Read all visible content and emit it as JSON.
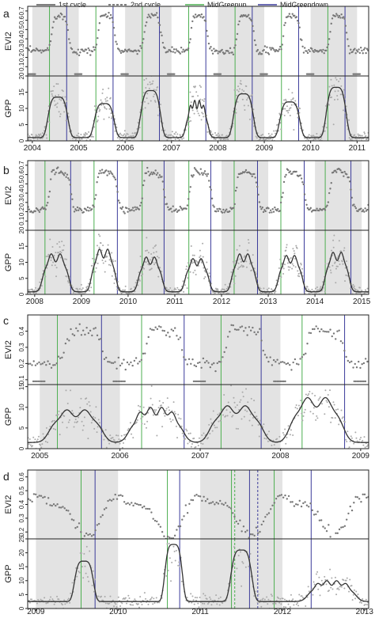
{
  "legend": {
    "items": [
      {
        "label": "1st cycle",
        "style": "solid",
        "color": "#555555"
      },
      {
        "label": "2nd cycle",
        "style": "dashed",
        "color": "#555555"
      },
      {
        "label": "MidGreenup",
        "style": "solid",
        "color": "#4caf50"
      },
      {
        "label": "MidGreendown",
        "style": "solid",
        "color": "#3a3a9a"
      }
    ]
  },
  "colors": {
    "greenup": "#4caf50",
    "greendown": "#3a3a9a",
    "shade": "#e3e3e3",
    "points": "#777777",
    "gpp_points": "#aaaaaa",
    "curve": "#333333"
  },
  "chart_data": [
    {
      "panel": "a",
      "type": "line",
      "x_range": [
        2003.9,
        2011.25
      ],
      "x_ticks": [
        2004,
        2005,
        2006,
        2007,
        2008,
        2009,
        2010,
        2011
      ],
      "x_tick_labels": [
        "2004",
        "2005",
        "2006",
        "2007",
        "2008",
        "2009",
        "2010",
        "2011"
      ],
      "shaded_years": [
        2004,
        2006,
        2008,
        2010
      ],
      "evi2": {
        "ylabel": "EVI2",
        "ylim": [
          0,
          0.75
        ],
        "ticks": [
          0.1,
          0.2,
          0.3,
          0.4,
          0.5,
          0.6,
          0.7
        ],
        "tick_labels": [
          "0.1",
          "0.2",
          "0.3",
          "0.4",
          "0.5",
          "0.6",
          "0.7"
        ],
        "base": 0.27,
        "amplitude": 0.4,
        "zero_values": 0.02,
        "start_shift": 0.1
      },
      "gpp": {
        "ylabel": "GPP",
        "ylim": [
          0,
          20
        ],
        "ticks": [
          0,
          5,
          10,
          15,
          20
        ],
        "tick_labels": [
          "0",
          "5",
          "10",
          "15",
          "20"
        ],
        "base": 1.0,
        "seasons": [
          {
            "start": 2004.3,
            "end": 2004.8,
            "peak": 12.5,
            "dips": 0
          },
          {
            "start": 2005.3,
            "end": 2005.8,
            "peak": 10.5,
            "dips": 0
          },
          {
            "start": 2006.3,
            "end": 2006.8,
            "peak": 14.5,
            "dips": 0
          },
          {
            "start": 2007.3,
            "end": 2007.8,
            "peak": 11.5,
            "dips": 2
          },
          {
            "start": 2008.3,
            "end": 2008.8,
            "peak": 13.5,
            "dips": 0
          },
          {
            "start": 2009.3,
            "end": 2009.8,
            "peak": 11.0,
            "dips": 0
          },
          {
            "start": 2010.3,
            "end": 2010.8,
            "peak": 15.5,
            "dips": 0
          }
        ]
      },
      "mid_greenup": [
        2004.37,
        2005.37,
        2006.37,
        2007.37,
        2008.37,
        2009.37,
        2010.37
      ],
      "mid_greendown": [
        2004.74,
        2005.74,
        2006.74,
        2007.74,
        2008.74,
        2009.74,
        2010.74
      ],
      "second_cycle_greenup": [],
      "second_cycle_greendown": []
    },
    {
      "panel": "b",
      "type": "line",
      "x_range": [
        2007.85,
        2015.15
      ],
      "x_ticks": [
        2008,
        2009,
        2010,
        2011,
        2012,
        2013,
        2014,
        2015
      ],
      "x_tick_labels": [
        "2008",
        "2009",
        "2010",
        "2011",
        "2012",
        "2013",
        "2014",
        "2015"
      ],
      "shaded_years": [
        2008,
        2010,
        2012,
        2014
      ],
      "evi2": {
        "ylabel": "EVI2",
        "ylim": [
          0,
          0.75
        ],
        "ticks": [
          0.1,
          0.2,
          0.3,
          0.4,
          0.5,
          0.6,
          0.7
        ],
        "tick_labels": [
          "0.1",
          "0.2",
          "0.3",
          "0.4",
          "0.5",
          "0.6",
          "0.7"
        ],
        "base": 0.22,
        "amplitude": 0.43,
        "zero_values": 0,
        "start_shift": 0.0
      },
      "gpp": {
        "ylabel": "GPP",
        "ylim": [
          0,
          20
        ],
        "ticks": [
          0,
          5,
          10,
          15,
          20
        ],
        "tick_labels": [
          "0",
          "5",
          "10",
          "15",
          "20"
        ],
        "base": 0.8,
        "seasons": [
          {
            "start": 2008.15,
            "end": 2008.75,
            "peak": 12.0,
            "dips": 1
          },
          {
            "start": 2009.2,
            "end": 2009.75,
            "peak": 13.5,
            "dips": 1
          },
          {
            "start": 2010.2,
            "end": 2010.75,
            "peak": 11.0,
            "dips": 1
          },
          {
            "start": 2011.2,
            "end": 2011.75,
            "peak": 10.5,
            "dips": 1
          },
          {
            "start": 2012.2,
            "end": 2012.75,
            "peak": 12.0,
            "dips": 1
          },
          {
            "start": 2013.2,
            "end": 2013.75,
            "peak": 11.5,
            "dips": 1
          },
          {
            "start": 2014.2,
            "end": 2014.75,
            "peak": 12.5,
            "dips": 1
          }
        ]
      },
      "mid_greenup": [
        2008.22,
        2009.27,
        2010.3,
        2011.3,
        2012.27,
        2013.27,
        2014.22
      ],
      "mid_greendown": [
        2008.77,
        2009.77,
        2010.77,
        2011.77,
        2012.77,
        2013.77,
        2014.77
      ],
      "second_cycle_greenup": [],
      "second_cycle_greendown": []
    },
    {
      "panel": "c",
      "type": "line",
      "x_range": [
        2004.85,
        2009.1
      ],
      "x_ticks": [
        2005,
        2006,
        2007,
        2008,
        2009
      ],
      "x_tick_labels": [
        "2005",
        "2006",
        "2007",
        "2008",
        "2009"
      ],
      "shaded_years": [
        2005,
        2007
      ],
      "evi2": {
        "ylabel": "EVI2",
        "ylim": [
          0.07,
          0.5
        ],
        "ticks": [
          0.1,
          0.2,
          0.3,
          0.4
        ],
        "tick_labels": [
          "0.1",
          "0.2",
          "0.3",
          "0.4"
        ],
        "base": 0.2,
        "amplitude": 0.22,
        "zero_values": 0.09,
        "start_shift": 0.0
      },
      "gpp": {
        "ylabel": "GPP",
        "ylim": [
          0,
          15.5
        ],
        "ticks": [
          0,
          5,
          10,
          15
        ],
        "tick_labels": [
          "0",
          "5",
          "10",
          "15"
        ],
        "base": 1.5,
        "seasons": [
          {
            "start": 2005.1,
            "end": 2005.8,
            "peak": 8.0,
            "dips": 1
          },
          {
            "start": 2006.1,
            "end": 2006.8,
            "peak": 8.5,
            "dips": 2
          },
          {
            "start": 2007.1,
            "end": 2007.8,
            "peak": 9.0,
            "dips": 1
          },
          {
            "start": 2008.1,
            "end": 2008.8,
            "peak": 11.0,
            "dips": 1
          }
        ]
      },
      "mid_greenup": [
        2005.22,
        2006.27,
        2007.26,
        2008.27
      ],
      "mid_greendown": [
        2005.77,
        2006.8,
        2007.76,
        2008.8
      ],
      "second_cycle_greenup": [],
      "second_cycle_greendown": []
    },
    {
      "panel": "d",
      "type": "line",
      "x_range": [
        2008.9,
        2013.05
      ],
      "x_ticks": [
        2009,
        2010,
        2011,
        2012,
        2013
      ],
      "x_tick_labels": [
        "2009",
        "2010",
        "2011",
        "2012",
        "2013"
      ],
      "shaded_years": [
        2009,
        2011
      ],
      "evi2": {
        "ylabel": "EVI2",
        "ylim": [
          0.15,
          0.65
        ],
        "ticks": [
          0.2,
          0.3,
          0.4,
          0.5,
          0.6
        ],
        "tick_labels": [
          "0.2",
          "0.3",
          "0.4",
          "0.5",
          "0.6"
        ],
        "base": 0.28,
        "amplitude": 0.24,
        "zero_values": 0,
        "start_shift": 0.0
      },
      "gpp": {
        "ylabel": "GPP",
        "ylim": [
          0,
          25
        ],
        "ticks": [
          0,
          5,
          10,
          15,
          20,
          25
        ],
        "tick_labels": [
          "0",
          "5",
          "10",
          "15",
          "20",
          "25"
        ],
        "base": 2.5,
        "seasons": [
          {
            "start": 2009.45,
            "end": 2009.72,
            "peak": 14.5,
            "dips": 0
          },
          {
            "start": 2010.55,
            "end": 2010.8,
            "peak": 20.5,
            "dips": 0
          },
          {
            "start": 2011.35,
            "end": 2011.65,
            "peak": 18.5,
            "dips": 0
          },
          {
            "start": 2012.3,
            "end": 2012.9,
            "peak": 7.5,
            "dips": 2
          }
        ]
      },
      "mid_greenup": [
        2009.55,
        2010.6,
        2011.38,
        2011.9
      ],
      "mid_greendown": [
        2009.72,
        2010.75,
        2011.6,
        2012.35
      ],
      "second_cycle_greenup": [
        2011.42
      ],
      "second_cycle_greendown": [
        2011.7
      ]
    }
  ]
}
